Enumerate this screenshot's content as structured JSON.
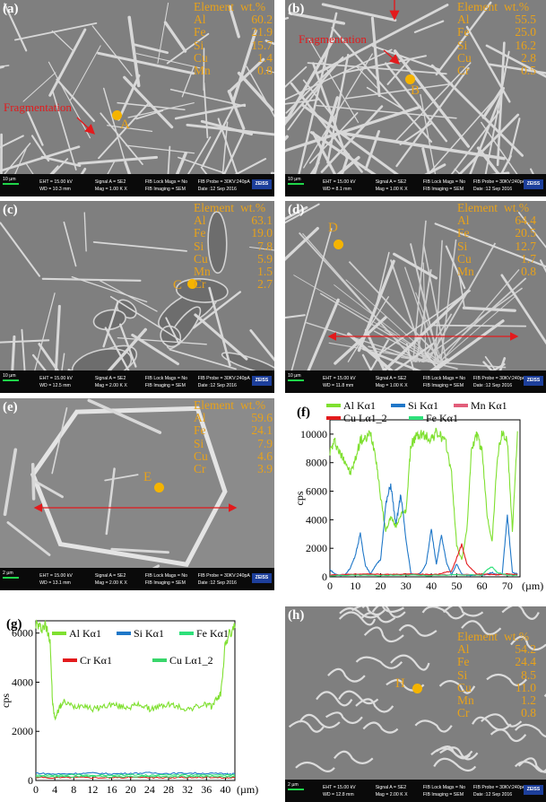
{
  "panels": {
    "a": {
      "label": "(a)",
      "composition": {
        "header": [
          "Element",
          "wt.%"
        ],
        "rows": [
          [
            "Al",
            "60.2"
          ],
          [
            "Fe",
            "21.9"
          ],
          [
            "Si",
            "15.7"
          ],
          [
            "Cu",
            "1.4"
          ],
          [
            "Mn",
            "0.8"
          ]
        ]
      },
      "spot": "A",
      "annotation": "Fragmentation",
      "scalebar": "10 µm",
      "info": {
        "eht": "EHT = 15.00 kV",
        "wd": "WD = 10.3 mm",
        "signal": "Signal A = SE2",
        "mag": "Mag = 1.00 K X",
        "fib_lock": "FIB Lock Mags = No",
        "fib_img": "FIB Imaging = SEM",
        "fib_probe": "FIB Probe = 30KV:240pA",
        "date": "Date :12 Sep 2016"
      }
    },
    "b": {
      "label": "(b)",
      "composition": {
        "header": [
          "Element",
          "wt.%"
        ],
        "rows": [
          [
            "Al",
            "55.5"
          ],
          [
            "Fe",
            "25.0"
          ],
          [
            "Si",
            "16.2"
          ],
          [
            "Cu",
            "2.8"
          ],
          [
            "Cr",
            "0.5"
          ]
        ]
      },
      "spot": "B",
      "annotation": "Fragmentation",
      "scalebar": "10 µm",
      "info": {
        "eht": "EHT = 15.00 kV",
        "wd": "WD = 8.1 mm",
        "signal": "Signal A = SE2",
        "mag": "Mag = 1.00 K X",
        "fib_lock": "FIB Lock Mags = No",
        "fib_img": "FIB Imaging = SEM",
        "fib_probe": "FIB Probe = 30KV:240pA",
        "date": "Date :12 Sep 2016"
      }
    },
    "c": {
      "label": "(c)",
      "composition": {
        "header": [
          "Element",
          "wt.%"
        ],
        "rows": [
          [
            "Al",
            "63.1"
          ],
          [
            "Fe",
            "19.0"
          ],
          [
            "Si",
            "7.8"
          ],
          [
            "Cu",
            "5.9"
          ],
          [
            "Mn",
            "1.5"
          ],
          [
            "Cr",
            "2.7"
          ]
        ]
      },
      "spot": "C",
      "scalebar": "10 µm",
      "info": {
        "eht": "EHT = 15.00 kV",
        "wd": "WD = 12.5 mm",
        "signal": "Signal A = SE2",
        "mag": "Mag = 2.00 K X",
        "fib_lock": "FIB Lock Mags = No",
        "fib_img": "FIB Imaging = SEM",
        "fib_probe": "FIB Probe = 30KV:240pA",
        "date": "Date :12 Sep 2016"
      }
    },
    "d": {
      "label": "(d)",
      "composition": {
        "header": [
          "Element",
          "wt.%"
        ],
        "rows": [
          [
            "Al",
            "64.4"
          ],
          [
            "Fe",
            "20.5"
          ],
          [
            "Si",
            "12.7"
          ],
          [
            "Cu",
            "1.7"
          ],
          [
            "Mn",
            "0.8"
          ]
        ]
      },
      "spot": "D",
      "scalebar": "10 µm",
      "info": {
        "eht": "EHT = 15.00 kV",
        "wd": "WD = 11.8 mm",
        "signal": "Signal A = SE2",
        "mag": "Mag = 1.00 K X",
        "fib_lock": "FIB Lock Mags = No",
        "fib_img": "FIB Imaging = SEM",
        "fib_probe": "FIB Probe = 30KV:240pA",
        "date": "Date :12 Sep 2016"
      }
    },
    "e": {
      "label": "(e)",
      "composition": {
        "header": [
          "Element",
          "wt.%"
        ],
        "rows": [
          [
            "Al",
            "59.6"
          ],
          [
            "Fe",
            "24.1"
          ],
          [
            "Si",
            "7.9"
          ],
          [
            "Cu",
            "4.6"
          ],
          [
            "Cr",
            "3.9"
          ]
        ]
      },
      "spot": "E",
      "scalebar": "2 µm",
      "info": {
        "eht": "EHT = 15.00 kV",
        "wd": "WD = 13.1 mm",
        "signal": "Signal A = SE2",
        "mag": "Mag = 2.00 K X",
        "fib_lock": "FIB Lock Mags = No",
        "fib_img": "FIB Imaging = SEM",
        "fib_probe": "FIB Probe = 30KV:240pA",
        "date": "Date :12 Sep 2016"
      }
    },
    "h": {
      "label": "(h)",
      "composition": {
        "header": [
          "Element",
          "wt.%"
        ],
        "rows": [
          [
            "Al",
            "54.2"
          ],
          [
            "Fe",
            "24.4"
          ],
          [
            "Si",
            "8.5"
          ],
          [
            "Cu",
            "11.0"
          ],
          [
            "Mn",
            "1.2"
          ],
          [
            "Cr",
            "0.8"
          ]
        ]
      },
      "spot": "H",
      "scalebar": "2 µm",
      "info": {
        "eht": "EHT = 15.00 kV",
        "wd": "WD = 12.8 mm",
        "signal": "Signal A = SE2",
        "mag": "Mag = 2.00 K X",
        "fib_lock": "FIB Lock Mags = No",
        "fib_img": "FIB Imaging = SEM",
        "fib_probe": "FIB Probe = 30KV:240pA",
        "date": "Date :12 Sep 2016"
      }
    }
  },
  "chart_data": [
    {
      "panel": "(f)",
      "type": "line",
      "ylabel": "cps",
      "xlabel": "(µm)",
      "xlim": [
        0,
        75
      ],
      "ylim": [
        0,
        11000
      ],
      "xticks": [
        0,
        10,
        20,
        30,
        40,
        50,
        60,
        70
      ],
      "yticks": [
        0,
        2000,
        4000,
        6000,
        8000,
        10000
      ],
      "legend_placement": "top",
      "series": [
        {
          "name": "Al Kα1",
          "color": "#7fe030",
          "x": [
            0,
            2,
            4,
            6,
            8,
            10,
            12,
            14,
            16,
            18,
            20,
            22,
            24,
            26,
            28,
            30,
            32,
            34,
            36,
            38,
            40,
            42,
            44,
            46,
            48,
            50,
            52,
            54,
            56,
            58,
            60,
            62,
            64,
            66,
            68,
            70,
            72,
            74
          ],
          "y": [
            8800,
            9500,
            8600,
            8200,
            7200,
            8200,
            9600,
            9600,
            10100,
            8600,
            5600,
            3200,
            4200,
            3500,
            4400,
            4600,
            9300,
            9800,
            10000,
            9800,
            9700,
            10100,
            9800,
            9200,
            7200,
            2200,
            1200,
            3200,
            9200,
            9900,
            8800,
            4400,
            2400,
            8300,
            10100,
            9500,
            3200,
            10200
          ]
        },
        {
          "name": "Si Kα1",
          "color": "#1f77c8",
          "x": [
            0,
            2,
            4,
            6,
            8,
            10,
            12,
            14,
            16,
            18,
            20,
            22,
            24,
            26,
            28,
            30,
            32,
            34,
            36,
            38,
            40,
            42,
            44,
            46,
            48,
            50,
            52,
            54,
            56,
            58,
            60,
            62,
            64,
            66,
            68,
            70,
            72,
            74
          ],
          "y": [
            500,
            200,
            100,
            150,
            600,
            1500,
            3000,
            800,
            200,
            800,
            1200,
            5000,
            6500,
            3600,
            5800,
            2600,
            200,
            150,
            300,
            900,
            3300,
            900,
            2900,
            1000,
            150,
            900,
            200,
            100,
            100,
            150,
            100,
            200,
            300,
            150,
            200,
            4300,
            300,
            200
          ]
        },
        {
          "name": "Mn Kα1",
          "color": "#e25d7a",
          "x": [
            0,
            10,
            20,
            30,
            40,
            50,
            60,
            70,
            74
          ],
          "y": [
            150,
            180,
            160,
            170,
            150,
            160,
            170,
            150,
            160
          ]
        },
        {
          "name": "Cu Lα1_2",
          "color": "#e31a1c",
          "x": [
            0,
            6,
            12,
            18,
            24,
            30,
            36,
            42,
            48,
            50,
            52,
            54,
            58,
            62,
            66,
            70,
            74
          ],
          "y": [
            100,
            150,
            180,
            200,
            160,
            200,
            180,
            160,
            400,
            1300,
            2300,
            900,
            200,
            180,
            150,
            200,
            150
          ]
        },
        {
          "name": "Fe Kα1",
          "color": "#2ee07a",
          "x": [
            0,
            10,
            20,
            30,
            40,
            50,
            60,
            62,
            64,
            66,
            70,
            74
          ],
          "y": [
            80,
            120,
            100,
            120,
            100,
            150,
            120,
            500,
            700,
            300,
            120,
            100
          ]
        }
      ]
    },
    {
      "panel": "(g)",
      "type": "line",
      "ylabel": "cps",
      "xlabel": "(µm)",
      "xlim": [
        0,
        42
      ],
      "ylim": [
        0,
        6500
      ],
      "xticks": [
        0,
        4,
        8,
        12,
        16,
        20,
        24,
        28,
        32,
        36,
        40
      ],
      "yticks": [
        0,
        2000,
        4000,
        6000
      ],
      "legend_placement": "top",
      "series": [
        {
          "name": "Al Kα1",
          "color": "#7fe030",
          "x": [
            0,
            1,
            2,
            3,
            3.5,
            4,
            5,
            6,
            8,
            10,
            12,
            14,
            16,
            18,
            20,
            22,
            24,
            26,
            28,
            30,
            32,
            34,
            36,
            37,
            38,
            39,
            40,
            41,
            42
          ],
          "y": [
            6400,
            6200,
            6300,
            5800,
            3200,
            2500,
            3000,
            3200,
            3000,
            3100,
            2900,
            3000,
            3100,
            3000,
            3000,
            3100,
            2900,
            3000,
            3100,
            3000,
            2900,
            3000,
            3100,
            3000,
            3300,
            3500,
            5600,
            6000,
            6200
          ]
        },
        {
          "name": "Si Kα1",
          "color": "#1f77c8",
          "x": [
            0,
            4,
            8,
            12,
            16,
            20,
            24,
            28,
            32,
            36,
            40,
            42
          ],
          "y": [
            300,
            260,
            280,
            300,
            270,
            290,
            310,
            280,
            300,
            290,
            270,
            280
          ]
        },
        {
          "name": "Fe Kα1",
          "color": "#2ee07a",
          "x": [
            0,
            4,
            8,
            12,
            16,
            20,
            24,
            28,
            32,
            36,
            40,
            42
          ],
          "y": [
            220,
            200,
            230,
            210,
            220,
            240,
            210,
            230,
            220,
            210,
            230,
            220
          ]
        },
        {
          "name": "Cr Kα1",
          "color": "#e31a1c",
          "x": [
            0,
            4,
            8,
            12,
            16,
            20,
            24,
            28,
            32,
            36,
            40,
            42
          ],
          "y": [
            120,
            110,
            130,
            120,
            110,
            130,
            120,
            110,
            120,
            130,
            110,
            120
          ]
        },
        {
          "name": "Cu Lα1_2",
          "color": "#39d66b",
          "x": [
            0,
            4,
            8,
            12,
            16,
            20,
            24,
            28,
            32,
            36,
            40,
            42
          ],
          "y": [
            170,
            150,
            160,
            170,
            150,
            160,
            170,
            150,
            160,
            170,
            150,
            160
          ]
        }
      ]
    }
  ]
}
